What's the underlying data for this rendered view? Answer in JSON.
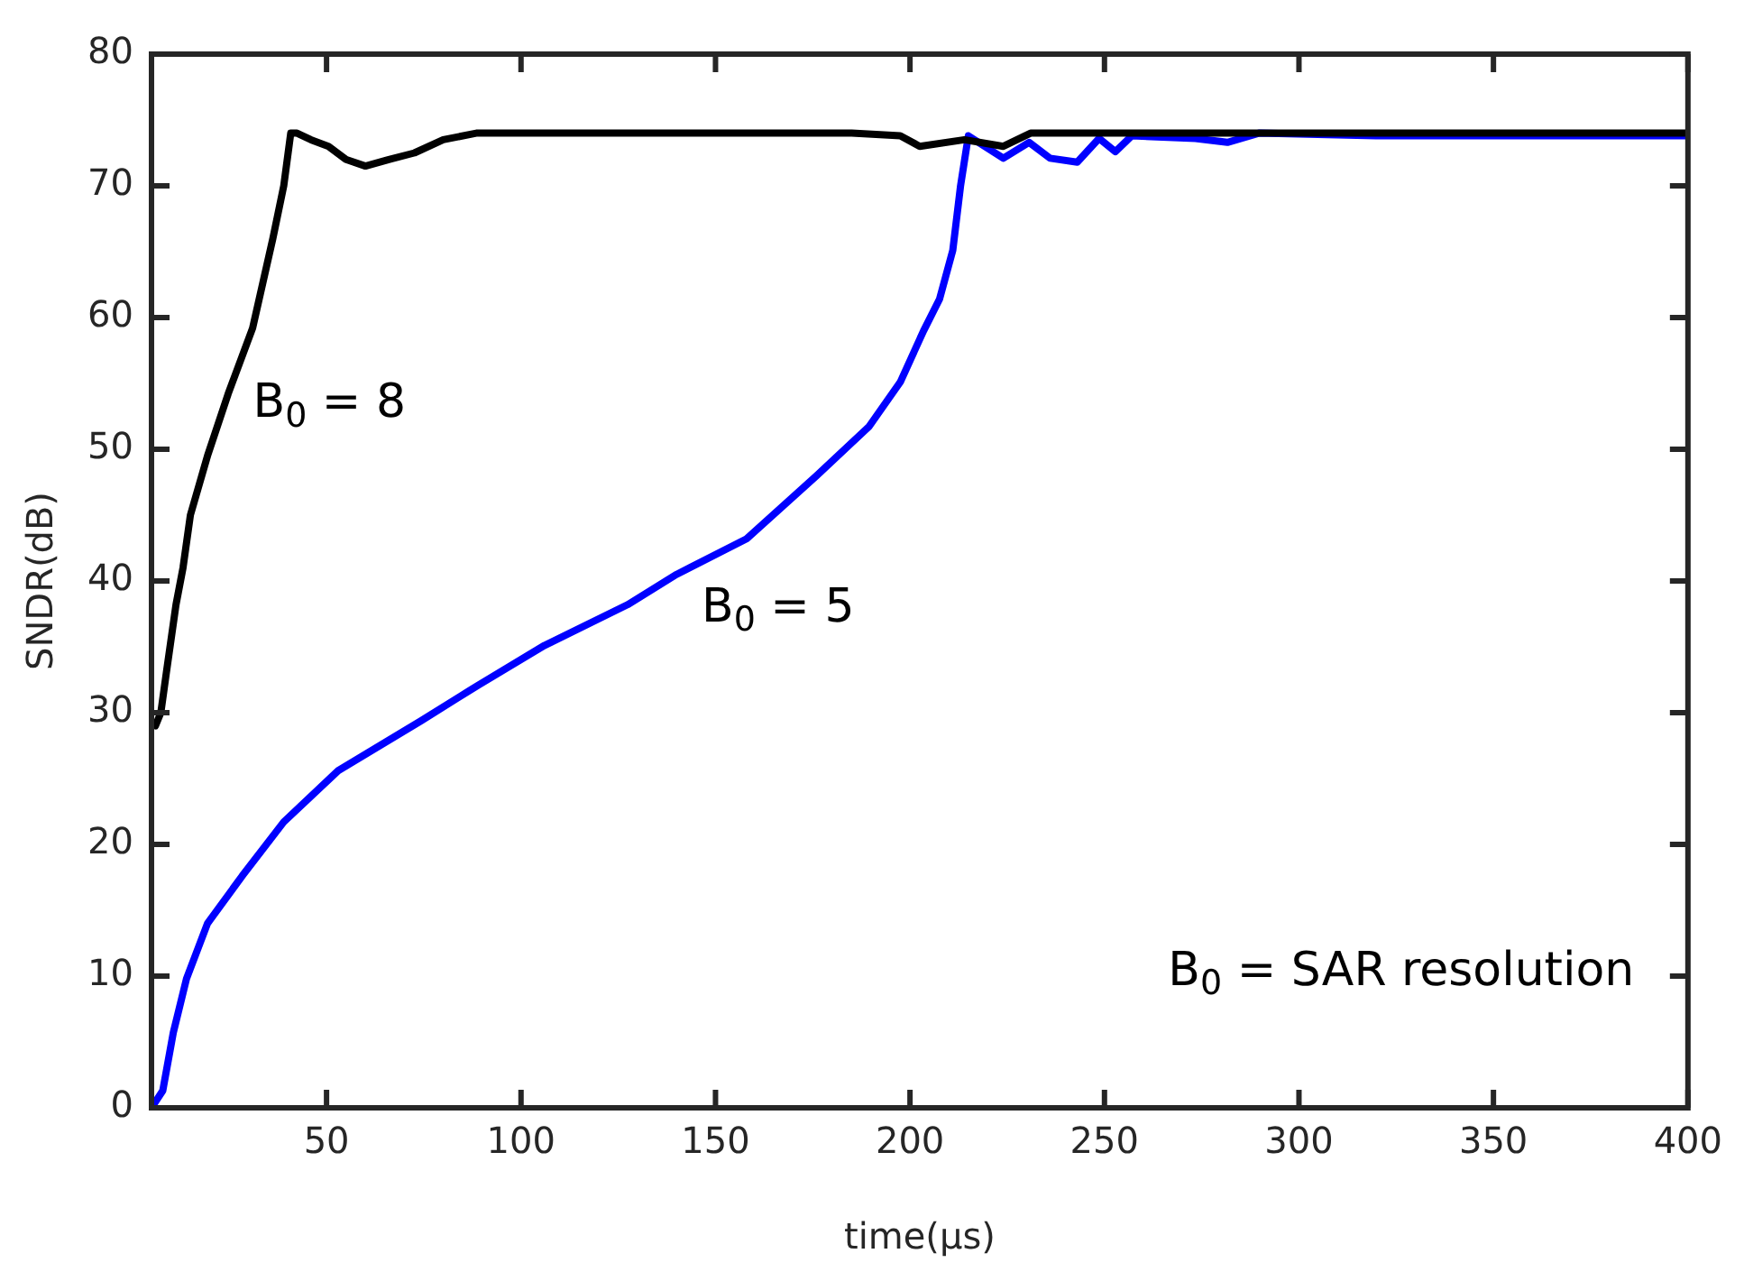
{
  "chart_data": {
    "type": "line",
    "xlabel": "time(μs)",
    "ylabel": "SNDR(dB)",
    "xlim": [
      5,
      400
    ],
    "ylim": [
      0,
      80
    ],
    "xticks": [
      50,
      100,
      150,
      200,
      250,
      300,
      350,
      400
    ],
    "yticks": [
      0,
      10,
      20,
      30,
      40,
      50,
      60,
      70,
      80
    ],
    "grid": false,
    "legend": false,
    "marker": "none",
    "line_style": "solid",
    "series": [
      {
        "color": "#000000",
        "x": [
          6,
          7.4,
          8.8,
          11.3,
          13.1,
          15,
          19.4,
          24.7,
          31,
          36.2,
          39,
          40.8,
          42.4,
          46,
          50.5,
          55,
          60,
          66,
          72.6,
          80,
          88.5,
          100,
          120,
          141.7,
          166,
          185,
          197.5,
          202.5,
          214,
          224,
          231,
          245,
          257,
          266.6,
          280,
          306,
          340,
          370,
          398,
          400
        ],
        "values": [
          29,
          30,
          33,
          38.2,
          41,
          45,
          49.5,
          54.2,
          59.2,
          66,
          70,
          74,
          74,
          73.5,
          73,
          72,
          71.5,
          72,
          72.5,
          73.5,
          74,
          74,
          74,
          74,
          74,
          74,
          73.8,
          73,
          73.5,
          73,
          74,
          74,
          74,
          74,
          74,
          74,
          74,
          74,
          74,
          74
        ]
      },
      {
        "color": "#0000ff",
        "x": [
          5,
          7.9,
          10.6,
          14,
          19.4,
          28.3,
          39,
          53,
          74.4,
          88.5,
          106,
          127.4,
          140,
          158,
          176,
          189.4,
          197.5,
          203.5,
          207.6,
          211,
          213,
          215,
          224,
          230.6,
          236,
          243,
          248.6,
          252.8,
          257,
          273.4,
          281.6,
          289.7,
          320,
          360,
          400
        ],
        "values": [
          0,
          1.3,
          5.7,
          9.8,
          14,
          17.6,
          21.7,
          25.6,
          29.4,
          32,
          35.1,
          38.2,
          40.5,
          43.2,
          48,
          51.7,
          55.1,
          59,
          61.4,
          65.1,
          70,
          73.8,
          72.1,
          73.3,
          72.1,
          71.8,
          73.6,
          72.6,
          73.8,
          73.6,
          73.3,
          74,
          73.8,
          73.8,
          73.8
        ]
      }
    ],
    "annotations": [
      "B$_{0}$ = 8",
      "B$_{0}$ = 5",
      "B$_{0}$ = SAR resolution"
    ]
  }
}
